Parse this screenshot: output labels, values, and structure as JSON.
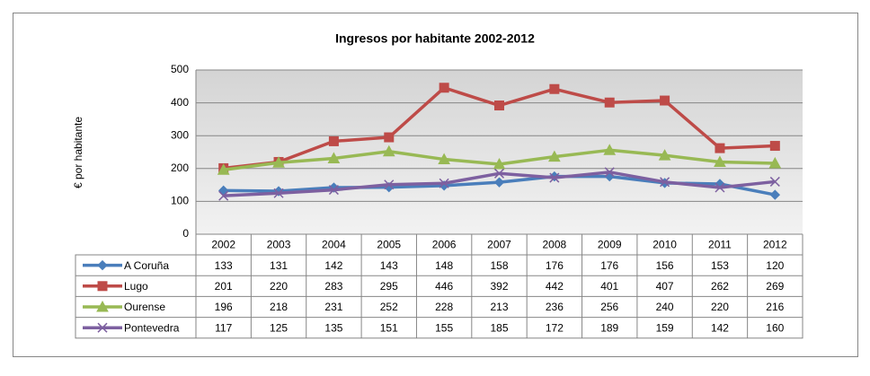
{
  "chart_data": {
    "type": "line",
    "title": "Ingresos por habitante 2002-2012",
    "y_label": "€ por habitante",
    "categories": [
      "2002",
      "2003",
      "2004",
      "2005",
      "2006",
      "2007",
      "2008",
      "2009",
      "2010",
      "2011",
      "2012"
    ],
    "series": [
      {
        "name": "A Coruña",
        "color": "#4a7ebb",
        "marker": "diamond",
        "values": [
          133,
          131,
          142,
          143,
          148,
          158,
          176,
          176,
          156,
          153,
          120
        ]
      },
      {
        "name": "Lugo",
        "color": "#be4b48",
        "marker": "square",
        "values": [
          201,
          220,
          283,
          295,
          446,
          392,
          442,
          401,
          407,
          262,
          269
        ]
      },
      {
        "name": "Ourense",
        "color": "#98b954",
        "marker": "triangle",
        "values": [
          196,
          218,
          231,
          252,
          228,
          213,
          236,
          256,
          240,
          220,
          216
        ]
      },
      {
        "name": "Pontevedra",
        "color": "#7d60a0",
        "marker": "x",
        "values": [
          117,
          125,
          135,
          151,
          155,
          185,
          172,
          189,
          159,
          142,
          160
        ]
      }
    ],
    "ylim": [
      0,
      500
    ],
    "yticks": [
      0,
      100,
      200,
      300,
      400,
      500
    ],
    "grid": true,
    "data_table": true
  }
}
